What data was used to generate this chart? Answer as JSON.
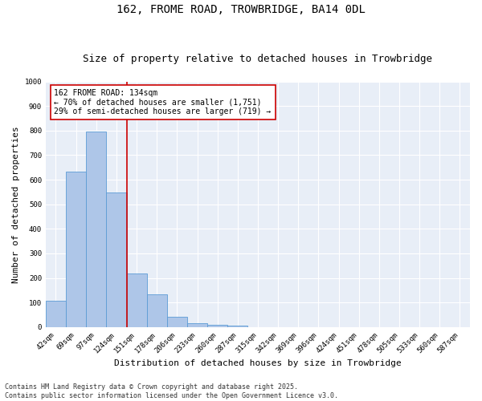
{
  "title_line1": "162, FROME ROAD, TROWBRIDGE, BA14 0DL",
  "title_line2": "Size of property relative to detached houses in Trowbridge",
  "xlabel": "Distribution of detached houses by size in Trowbridge",
  "ylabel": "Number of detached properties",
  "categories": [
    "42sqm",
    "69sqm",
    "97sqm",
    "124sqm",
    "151sqm",
    "178sqm",
    "206sqm",
    "233sqm",
    "260sqm",
    "287sqm",
    "315sqm",
    "342sqm",
    "369sqm",
    "396sqm",
    "424sqm",
    "451sqm",
    "478sqm",
    "505sqm",
    "533sqm",
    "560sqm",
    "587sqm"
  ],
  "values": [
    108,
    632,
    796,
    548,
    220,
    135,
    42,
    16,
    9,
    7,
    0,
    0,
    0,
    0,
    0,
    0,
    0,
    0,
    0,
    0,
    0
  ],
  "bar_color": "#aec6e8",
  "bar_edge_color": "#5b9bd5",
  "vline_x": 3.5,
  "vline_color": "#cc0000",
  "annotation_text": "162 FROME ROAD: 134sqm\n← 70% of detached houses are smaller (1,751)\n29% of semi-detached houses are larger (719) →",
  "annotation_box_color": "#ffffff",
  "annotation_box_edge": "#cc0000",
  "ylim": [
    0,
    1000
  ],
  "yticks": [
    0,
    100,
    200,
    300,
    400,
    500,
    600,
    700,
    800,
    900,
    1000
  ],
  "background_color": "#e8eef7",
  "grid_color": "#ffffff",
  "footer_line1": "Contains HM Land Registry data © Crown copyright and database right 2025.",
  "footer_line2": "Contains public sector information licensed under the Open Government Licence v3.0.",
  "fig_bg_color": "#ffffff",
  "title_fontsize": 10,
  "subtitle_fontsize": 9,
  "axis_label_fontsize": 8,
  "tick_fontsize": 6.5,
  "annotation_fontsize": 7,
  "footer_fontsize": 6
}
